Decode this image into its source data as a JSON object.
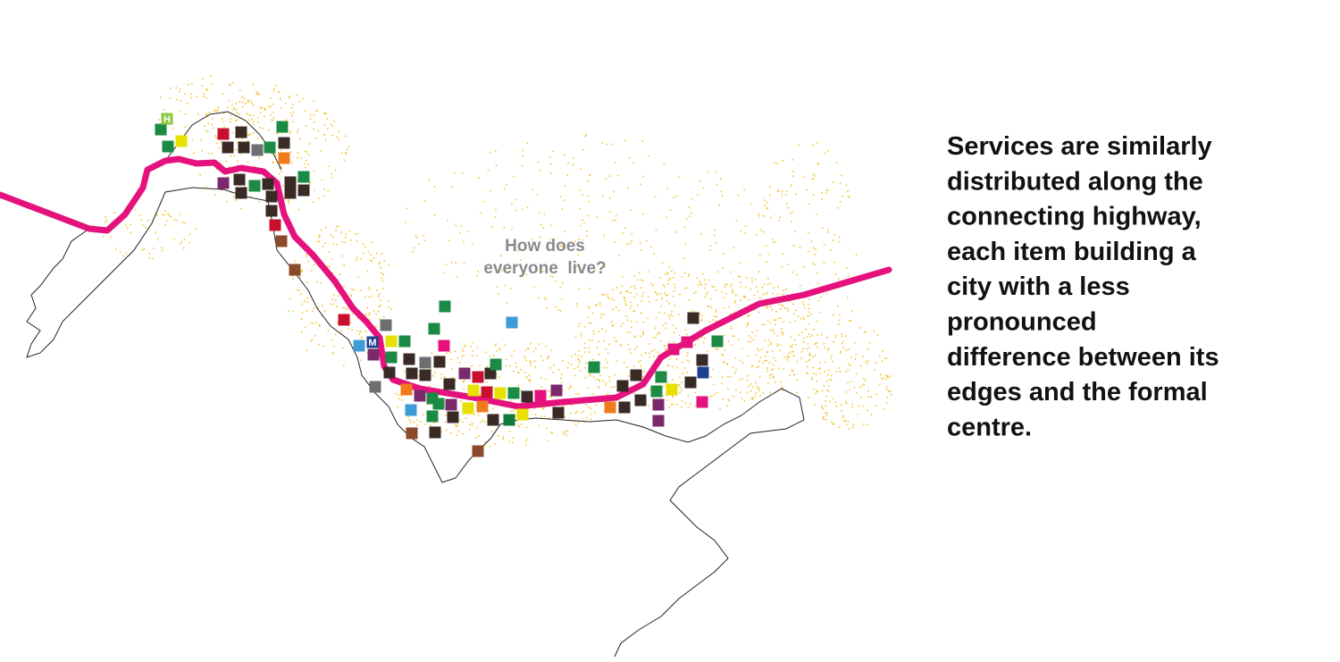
{
  "map": {
    "question": [
      "How does",
      "everyone  live?"
    ],
    "description": [
      "Services are similarly",
      "distributed along the",
      "connecting highway,",
      "each item building a",
      "city with a less",
      "pronounced",
      "difference between its",
      "edges and the formal",
      "centre."
    ],
    "icon_labels": [
      "H",
      "M"
    ]
  }
}
